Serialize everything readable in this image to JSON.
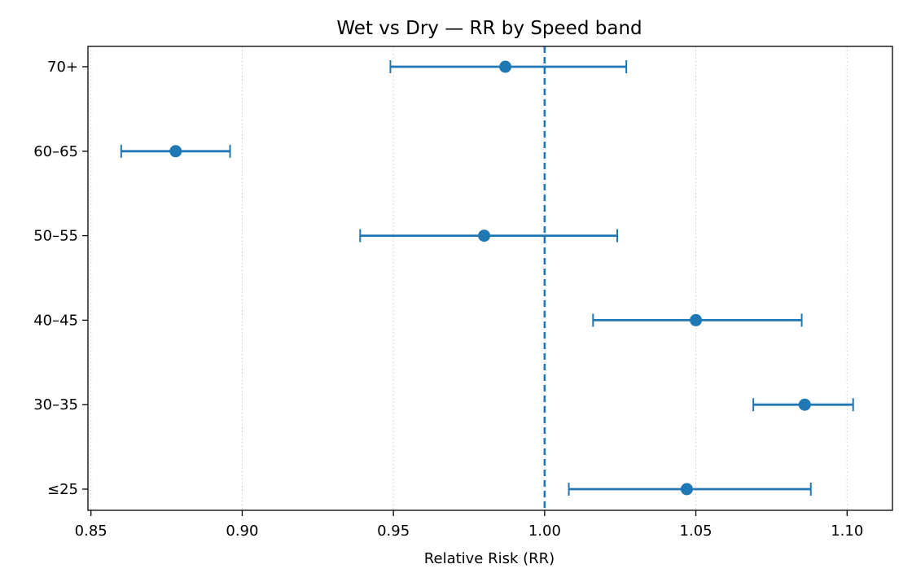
{
  "chart_data": {
    "type": "errorbar",
    "title": "Wet vs Dry — RR by Speed band",
    "xlabel": "Relative Risk (RR)",
    "ylabel": "",
    "xlim": [
      0.849,
      1.115
    ],
    "xticks": [
      0.85,
      0.9,
      0.95,
      1.0,
      1.05,
      1.1
    ],
    "xtick_labels": [
      "0.85",
      "0.90",
      "0.95",
      "1.00",
      "1.05",
      "1.10"
    ],
    "grid": "x dotted",
    "reference_line": 1.0,
    "categories": [
      "≤25",
      "30–35",
      "40–45",
      "50–55",
      "60–65",
      "70+"
    ],
    "series": [
      {
        "color": "#1f77b4",
        "points": [
          {
            "category": "≤25",
            "rr": 1.047,
            "lower": 1.008,
            "upper": 1.088
          },
          {
            "category": "30–35",
            "rr": 1.086,
            "lower": 1.069,
            "upper": 1.102
          },
          {
            "category": "40–45",
            "rr": 1.05,
            "lower": 1.016,
            "upper": 1.085
          },
          {
            "category": "50–55",
            "rr": 0.98,
            "lower": 0.939,
            "upper": 1.024
          },
          {
            "category": "60–65",
            "rr": 0.878,
            "lower": 0.86,
            "upper": 0.896
          },
          {
            "category": "70+",
            "rr": 0.987,
            "lower": 0.949,
            "upper": 1.027
          }
        ]
      }
    ]
  }
}
